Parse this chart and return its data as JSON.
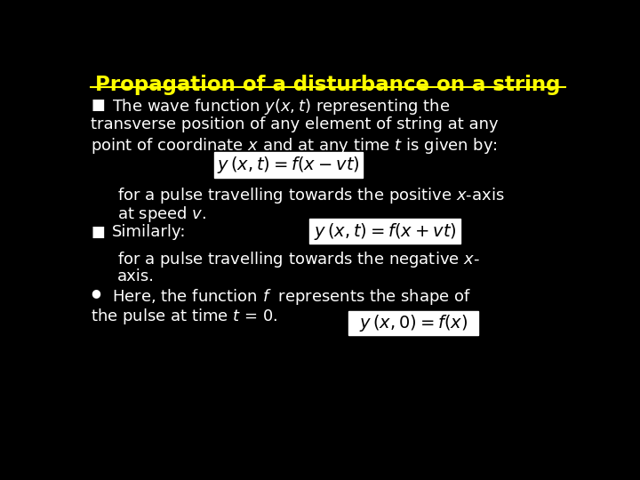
{
  "title": "Propagation of a disturbance on a string",
  "title_color": "#FFFF00",
  "background_color": "#000000",
  "text_color": "#FFFFFF",
  "figsize": [
    7.2,
    5.4
  ],
  "dpi": 100,
  "formula_bg": "#FFFFFF",
  "formula_text_color": "#000000",
  "bullet_square": "■",
  "bullet_circle": "●",
  "line1_b1": "The wave function $y(x,t)$ representing the",
  "line2_b1": "transverse position of any element of string at any",
  "line3_b1": "point of coordinate $x$ and at any time $t$ is given by:",
  "formula1": "$y\\,(x,t) = f(x-vt)$",
  "line1_after1": "for a pulse travelling towards the positive $x$-axis",
  "line2_after1": "at speed $v$.",
  "line_similarly": "Similarly:",
  "formula2": "$y\\,(x,t) = f(x+vt)$",
  "line1_after2": "for a pulse travelling towards the negative $x$-",
  "line2_after2": "axis.",
  "line1_b3": "Here, the function $f$  represents the shape of",
  "line2_b3": "the pulse at time $t$ = 0.",
  "formula3": "$y\\,(x,0) = f(x)$"
}
